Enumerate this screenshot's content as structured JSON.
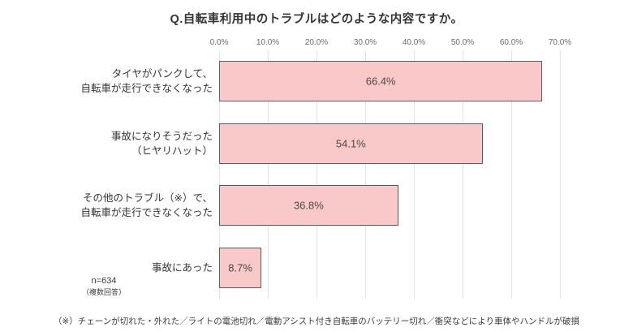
{
  "title": "Q.自転車利用中のトラブルはどのような内容ですか。",
  "sample_note": {
    "n": "n=634",
    "type": "（複数回答）"
  },
  "footnote": "（※）チェーンが切れた・外れた／ライトの電池切れ／電動アシスト付き自転車のバッテリー切れ／衝突などにより車体やハンドルが破損",
  "colors": {
    "bar_fill": "#f9c8c8",
    "bar_border": "#5f5a5e",
    "gridline": "#e2e2e2",
    "axis_text": "#6b6b6b",
    "text": "#3a3a3a"
  },
  "chart_data": {
    "type": "bar",
    "orientation": "horizontal",
    "title": "Q.自転車利用中のトラブルはどのような内容ですか。",
    "categories": [
      [
        "タイヤがパンクして、",
        "自転車が走行できなくなった"
      ],
      [
        "事故になりそうだった",
        "（ヒヤリハット）"
      ],
      [
        "その他のトラブル（※）で、",
        "自転車が走行できなくなった"
      ],
      [
        "事故にあった"
      ]
    ],
    "values": [
      66.4,
      54.1,
      36.8,
      8.7
    ],
    "value_labels": [
      "66.4%",
      "54.1%",
      "36.8%",
      "8.7%"
    ],
    "axis": {
      "min": 0,
      "max": 70,
      "step": 10,
      "tick_labels": [
        "0.0%",
        "10.0%",
        "20.0%",
        "30.0%",
        "40.0%",
        "50.0%",
        "60.0%",
        "70.0%"
      ]
    },
    "grid": true,
    "legend": "none",
    "value_label_position": "center-inside"
  }
}
